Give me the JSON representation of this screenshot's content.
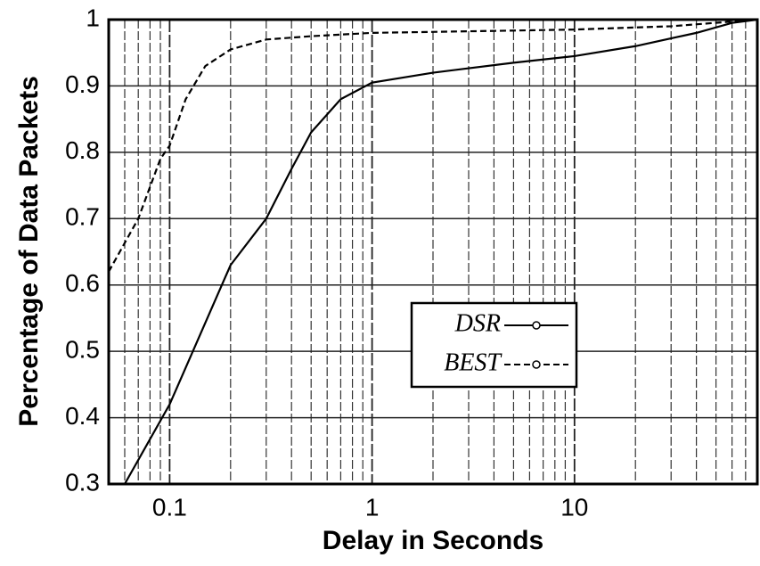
{
  "chart_data": {
    "type": "line",
    "xlabel": "Delay in Seconds",
    "ylabel": "Percentage of Data Packets",
    "xscale": "log",
    "xlim": [
      0.05,
      80
    ],
    "xticks": [
      0.1,
      1,
      10
    ],
    "ylim": [
      0.3,
      1
    ],
    "yticks": [
      0.3,
      0.4,
      0.5,
      0.6,
      0.7,
      0.8,
      0.9,
      1
    ],
    "grid": true,
    "legend_position": "center",
    "series": [
      {
        "name": "DSR",
        "color": "#000000",
        "dash": "solid",
        "x": [
          0.06,
          0.1,
          0.2,
          0.3,
          0.4,
          0.5,
          0.7,
          1,
          2,
          5,
          10,
          20,
          40,
          60,
          80
        ],
        "values": [
          0.3,
          0.42,
          0.63,
          0.7,
          0.775,
          0.83,
          0.88,
          0.905,
          0.92,
          0.935,
          0.945,
          0.96,
          0.98,
          0.995,
          1.0
        ]
      },
      {
        "name": "BEST",
        "color": "#000000",
        "dash": "dashed",
        "x": [
          0.05,
          0.07,
          0.09,
          0.1,
          0.12,
          0.15,
          0.2,
          0.3,
          0.5,
          1,
          10,
          30,
          80
        ],
        "values": [
          0.62,
          0.7,
          0.79,
          0.81,
          0.88,
          0.93,
          0.955,
          0.97,
          0.975,
          0.98,
          0.985,
          0.99,
          1.0
        ]
      }
    ]
  }
}
